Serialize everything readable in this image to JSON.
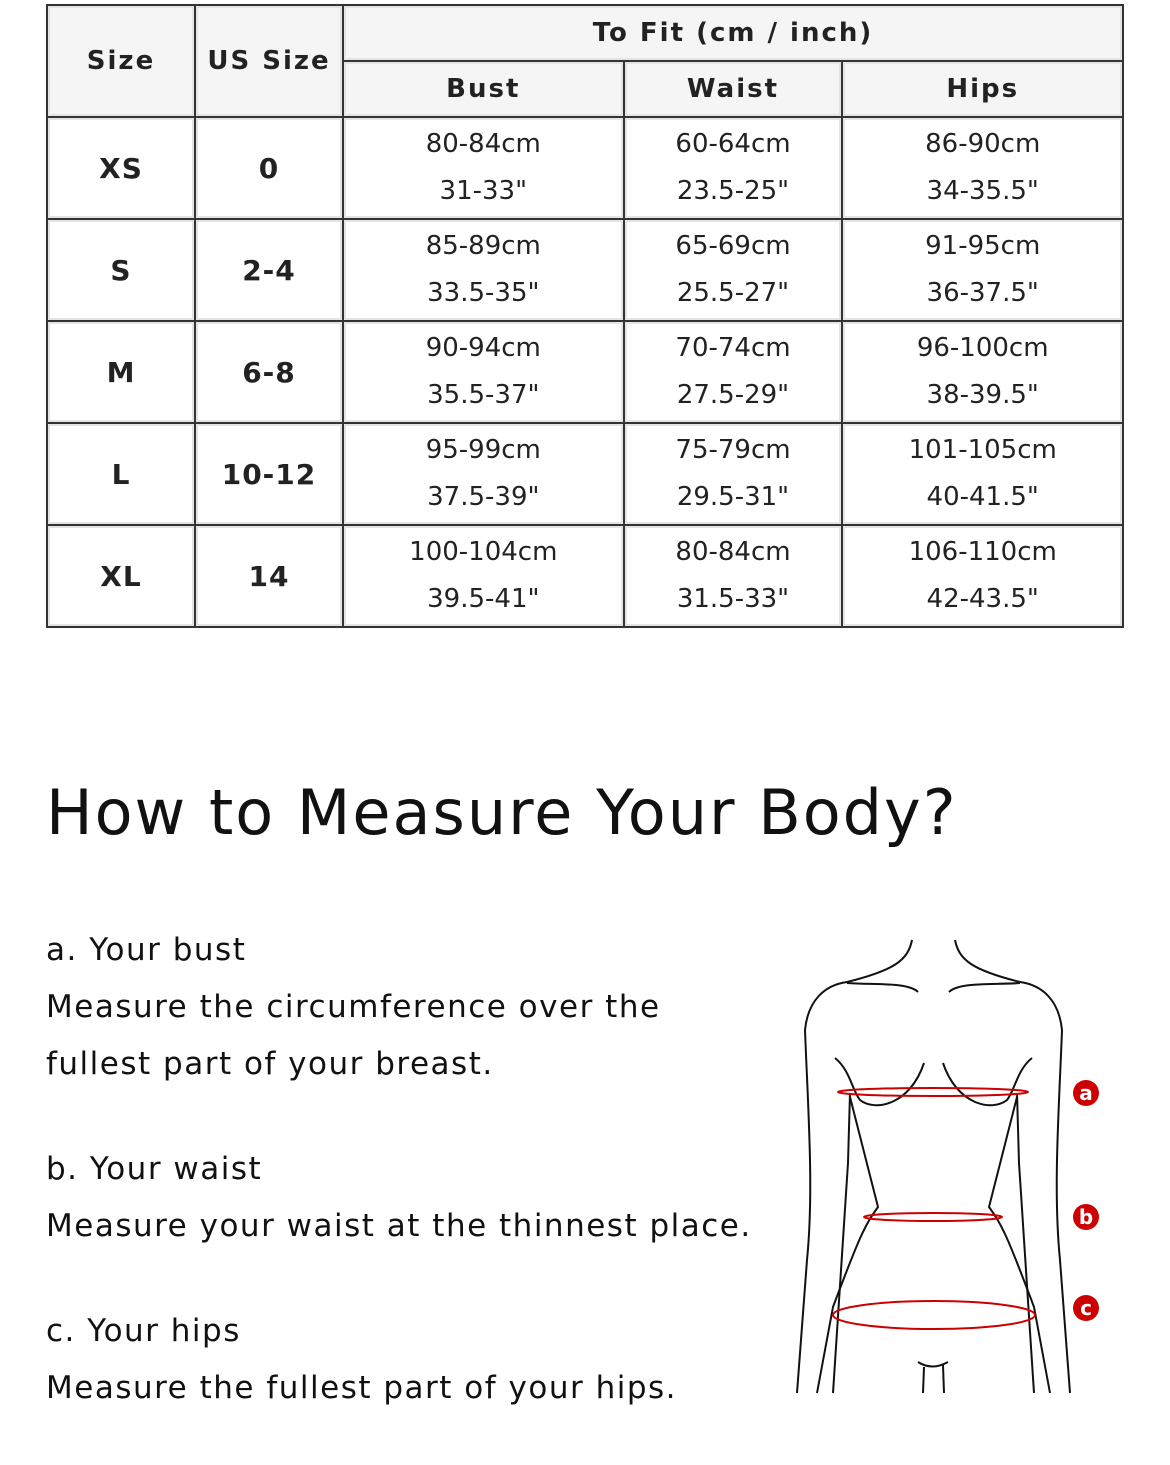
{
  "table": {
    "headers": {
      "size": "Size",
      "us_size": "US Size",
      "to_fit": "To Fit (cm / inch)",
      "bust": "Bust",
      "waist": "Waist",
      "hips": "Hips"
    },
    "rows": [
      {
        "size": "XS",
        "us": "0",
        "bust_cm": "80-84cm",
        "bust_in": "31-33\"",
        "waist_cm": "60-64cm",
        "waist_in": "23.5-25\"",
        "hips_cm": "86-90cm",
        "hips_in": "34-35.5\""
      },
      {
        "size": "S",
        "us": "2-4",
        "bust_cm": "85-89cm",
        "bust_in": "33.5-35\"",
        "waist_cm": "65-69cm",
        "waist_in": "25.5-27\"",
        "hips_cm": "91-95cm",
        "hips_in": "36-37.5\""
      },
      {
        "size": "M",
        "us": "6-8",
        "bust_cm": "90-94cm",
        "bust_in": "35.5-37\"",
        "waist_cm": "70-74cm",
        "waist_in": "27.5-29\"",
        "hips_cm": "96-100cm",
        "hips_in": "38-39.5\""
      },
      {
        "size": "L",
        "us": "10-12",
        "bust_cm": "95-99cm",
        "bust_in": "37.5-39\"",
        "waist_cm": "75-79cm",
        "waist_in": "29.5-31\"",
        "hips_cm": "101-105cm",
        "hips_in": "40-41.5\""
      },
      {
        "size": "XL",
        "us": "14",
        "bust_cm": "100-104cm",
        "bust_in": "39.5-41\"",
        "waist_cm": "80-84cm",
        "waist_in": "31.5-33\"",
        "hips_cm": "106-110cm",
        "hips_in": "42-43.5\""
      }
    ]
  },
  "measure": {
    "title": "How to Measure Your Body?",
    "items": [
      {
        "label": "a. Your bust",
        "text": "Measure the circumference over the fullest part of your breast."
      },
      {
        "label": "b. Your waist",
        "text": "Measure your waist at the thinnest place."
      },
      {
        "label": "c. Your hips",
        "text": "Measure the fullest part of your hips."
      }
    ],
    "markers": [
      "a",
      "b",
      "c"
    ],
    "accent": "#cc0000"
  }
}
